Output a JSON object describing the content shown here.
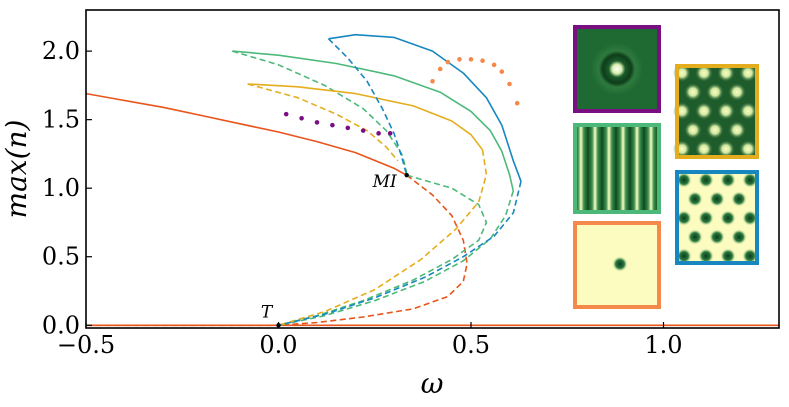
{
  "chart_data": {
    "type": "line",
    "xlabel": "ω",
    "ylabel": "max(n)",
    "xlim": [
      -0.5,
      1.3
    ],
    "ylim": [
      -0.02,
      2.3
    ],
    "xticks": [
      -0.5,
      0.0,
      0.5,
      1.0
    ],
    "xtick_labels": [
      "−0.5",
      "0.0",
      "0.5",
      "1.0"
    ],
    "yticks": [
      0.0,
      0.5,
      1.0,
      1.5,
      2.0
    ],
    "ytick_labels": [
      "0.0",
      "0.5",
      "1.0",
      "1.5",
      "2.0"
    ],
    "grid": false,
    "legend": "none",
    "annotations": [
      {
        "text": "MI",
        "x": 0.333,
        "y": 1.095
      },
      {
        "text": "T",
        "x": 0.0,
        "y": 0.0
      }
    ],
    "colors": {
      "orange": "#e8541a",
      "green": "#4cb97a",
      "yellow": "#e4ad1d",
      "blue": "#1787c0",
      "purple": "#7a0f82",
      "light_orange": "#f5894a"
    },
    "series": [
      {
        "color": "orange",
        "style": "solid",
        "x": [
          -0.5,
          1.3
        ],
        "y": [
          0.0,
          0.0
        ]
      },
      {
        "color": "orange",
        "style": "dashed",
        "x": [
          -0.5,
          0.0
        ],
        "y": [
          0.0,
          0.0
        ]
      },
      {
        "color": "orange",
        "style": "solid",
        "x": [
          -0.5,
          -0.4,
          -0.3,
          -0.2,
          -0.1,
          0.0,
          0.1,
          0.2,
          0.3,
          0.333
        ],
        "y": [
          1.69,
          1.64,
          1.59,
          1.53,
          1.47,
          1.41,
          1.34,
          1.26,
          1.145,
          1.095
        ]
      },
      {
        "color": "orange",
        "style": "dashed",
        "x": [
          0.333,
          0.4,
          0.45,
          0.48,
          0.49,
          0.48,
          0.44,
          0.35,
          0.22,
          0.1,
          0.0
        ],
        "y": [
          1.095,
          0.95,
          0.8,
          0.62,
          0.45,
          0.32,
          0.21,
          0.12,
          0.06,
          0.02,
          0.0
        ]
      },
      {
        "color": "green",
        "style": "solid",
        "x": [
          -0.12,
          0.0,
          0.15,
          0.3,
          0.42,
          0.5,
          0.55,
          0.58,
          0.6,
          0.61
        ],
        "y": [
          2.0,
          1.97,
          1.91,
          1.82,
          1.7,
          1.56,
          1.42,
          1.27,
          1.1,
          0.98
        ]
      },
      {
        "color": "green",
        "style": "dashed",
        "x": [
          0.61,
          0.59,
          0.55,
          0.48,
          0.38,
          0.25,
          0.12,
          0.0
        ],
        "y": [
          0.98,
          0.8,
          0.63,
          0.47,
          0.32,
          0.18,
          0.07,
          0.0
        ]
      },
      {
        "color": "green",
        "style": "dashed",
        "x": [
          -0.12,
          0.0,
          0.12,
          0.22,
          0.28,
          0.32,
          0.33,
          0.333
        ],
        "y": [
          2.0,
          1.9,
          1.75,
          1.58,
          1.42,
          1.25,
          1.15,
          1.095
        ]
      },
      {
        "color": "green",
        "style": "dashed",
        "x": [
          0.333,
          0.45,
          0.52,
          0.54,
          0.52,
          0.45,
          0.35,
          0.22,
          0.1,
          0.0
        ],
        "y": [
          1.095,
          1.0,
          0.88,
          0.75,
          0.62,
          0.48,
          0.33,
          0.18,
          0.07,
          0.0
        ]
      },
      {
        "color": "yellow",
        "style": "solid",
        "x": [
          -0.08,
          0.05,
          0.2,
          0.35,
          0.45,
          0.5,
          0.53
        ],
        "y": [
          1.76,
          1.74,
          1.69,
          1.6,
          1.49,
          1.39,
          1.28
        ]
      },
      {
        "color": "yellow",
        "style": "dashed",
        "x": [
          -0.08,
          0.05,
          0.15,
          0.23,
          0.28,
          0.31
        ],
        "y": [
          1.76,
          1.66,
          1.54,
          1.42,
          1.3,
          1.2
        ]
      },
      {
        "color": "yellow",
        "style": "dashed",
        "x": [
          0.53,
          0.54,
          0.52,
          0.46,
          0.37,
          0.25,
          0.12,
          0.0
        ],
        "y": [
          1.28,
          1.1,
          0.9,
          0.7,
          0.48,
          0.26,
          0.1,
          0.0
        ]
      },
      {
        "color": "blue",
        "style": "solid",
        "x": [
          0.13,
          0.2,
          0.3,
          0.4,
          0.48,
          0.54,
          0.58,
          0.61,
          0.63
        ],
        "y": [
          2.09,
          2.12,
          2.1,
          2.0,
          1.84,
          1.66,
          1.46,
          1.2,
          1.05
        ]
      },
      {
        "color": "blue",
        "style": "dashed",
        "x": [
          0.63,
          0.61,
          0.56,
          0.48,
          0.38,
          0.25,
          0.12,
          0.0
        ],
        "y": [
          1.05,
          0.82,
          0.65,
          0.5,
          0.35,
          0.2,
          0.08,
          0.0
        ]
      },
      {
        "color": "blue",
        "style": "dashed",
        "x": [
          0.13,
          0.18,
          0.23,
          0.27,
          0.3,
          0.32,
          0.333
        ],
        "y": [
          2.09,
          1.95,
          1.78,
          1.58,
          1.4,
          1.23,
          1.095
        ]
      },
      {
        "color": "purple",
        "style": "dotted",
        "x": [
          0.02,
          0.06,
          0.1,
          0.14,
          0.18,
          0.22,
          0.26,
          0.29
        ],
        "y": [
          1.54,
          1.51,
          1.48,
          1.46,
          1.44,
          1.42,
          1.4,
          1.4
        ]
      },
      {
        "color": "light_orange",
        "style": "dotted",
        "x": [
          0.4,
          0.42,
          0.44,
          0.47,
          0.5,
          0.53,
          0.56,
          0.58,
          0.6,
          0.62
        ],
        "y": [
          1.78,
          1.87,
          1.92,
          1.94,
          1.94,
          1.93,
          1.9,
          1.85,
          1.76,
          1.62
        ]
      }
    ],
    "insets": [
      {
        "name": "purple-inset",
        "border": "purple",
        "pattern": "single-ring-spot"
      },
      {
        "name": "yellow-inset",
        "border": "yellow",
        "pattern": "hexagonal-spots"
      },
      {
        "name": "green-inset",
        "border": "green",
        "pattern": "stripes"
      },
      {
        "name": "blue-inset",
        "border": "blue",
        "pattern": "hexagonal-holes"
      },
      {
        "name": "orange-inset",
        "border": "light_orange",
        "pattern": "single-spot"
      }
    ]
  }
}
